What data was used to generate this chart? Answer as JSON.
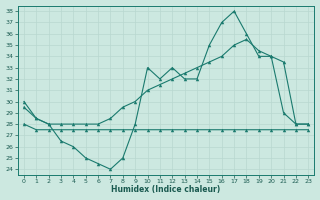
{
  "xlabel": "Humidex (Indice chaleur)",
  "bg_color": "#cce8e0",
  "grid_color": "#b0d8d0",
  "line_color": "#1a7a6e",
  "xlim": [
    -0.5,
    23.5
  ],
  "ylim": [
    23.5,
    38.5
  ],
  "xticks": [
    0,
    1,
    2,
    3,
    4,
    5,
    6,
    7,
    8,
    9,
    10,
    11,
    12,
    13,
    14,
    15,
    16,
    17,
    18,
    19,
    20,
    21,
    22,
    23
  ],
  "yticks": [
    24,
    25,
    26,
    27,
    28,
    29,
    30,
    31,
    32,
    33,
    34,
    35,
    36,
    37,
    38
  ],
  "line1_x": [
    0,
    1,
    2,
    3,
    4,
    5,
    6,
    7,
    8,
    9,
    10,
    11,
    12,
    13,
    14,
    15,
    16,
    17,
    18,
    19,
    20,
    21,
    22,
    23
  ],
  "line1_y": [
    30,
    28.5,
    28,
    26.5,
    26,
    25,
    24.5,
    24,
    25,
    28,
    33,
    32,
    33,
    32,
    32,
    35,
    37,
    38,
    36,
    34,
    34,
    29,
    28,
    28
  ],
  "line2_x": [
    0,
    1,
    2,
    3,
    4,
    5,
    6,
    7,
    8,
    9,
    10,
    11,
    12,
    13,
    14,
    15,
    16,
    17,
    18,
    19,
    20,
    21,
    22,
    23
  ],
  "line2_y": [
    28,
    27.5,
    27.5,
    27.5,
    27.5,
    27.5,
    27.5,
    27.5,
    27.5,
    27.5,
    27.5,
    27.5,
    27.5,
    27.5,
    27.5,
    27.5,
    27.5,
    27.5,
    27.5,
    27.5,
    27.5,
    27.5,
    27.5,
    27.5
  ],
  "line3_x": [
    0,
    1,
    2,
    3,
    4,
    5,
    6,
    7,
    8,
    9,
    10,
    11,
    12,
    13,
    14,
    15,
    16,
    17,
    18,
    19,
    20,
    21,
    22,
    23
  ],
  "line3_y": [
    29.5,
    28.5,
    28,
    28,
    28,
    28,
    28,
    28.5,
    29.5,
    30,
    31,
    31.5,
    32,
    32.5,
    33,
    33.5,
    34,
    35,
    35.5,
    34.5,
    34,
    33.5,
    28,
    28
  ]
}
